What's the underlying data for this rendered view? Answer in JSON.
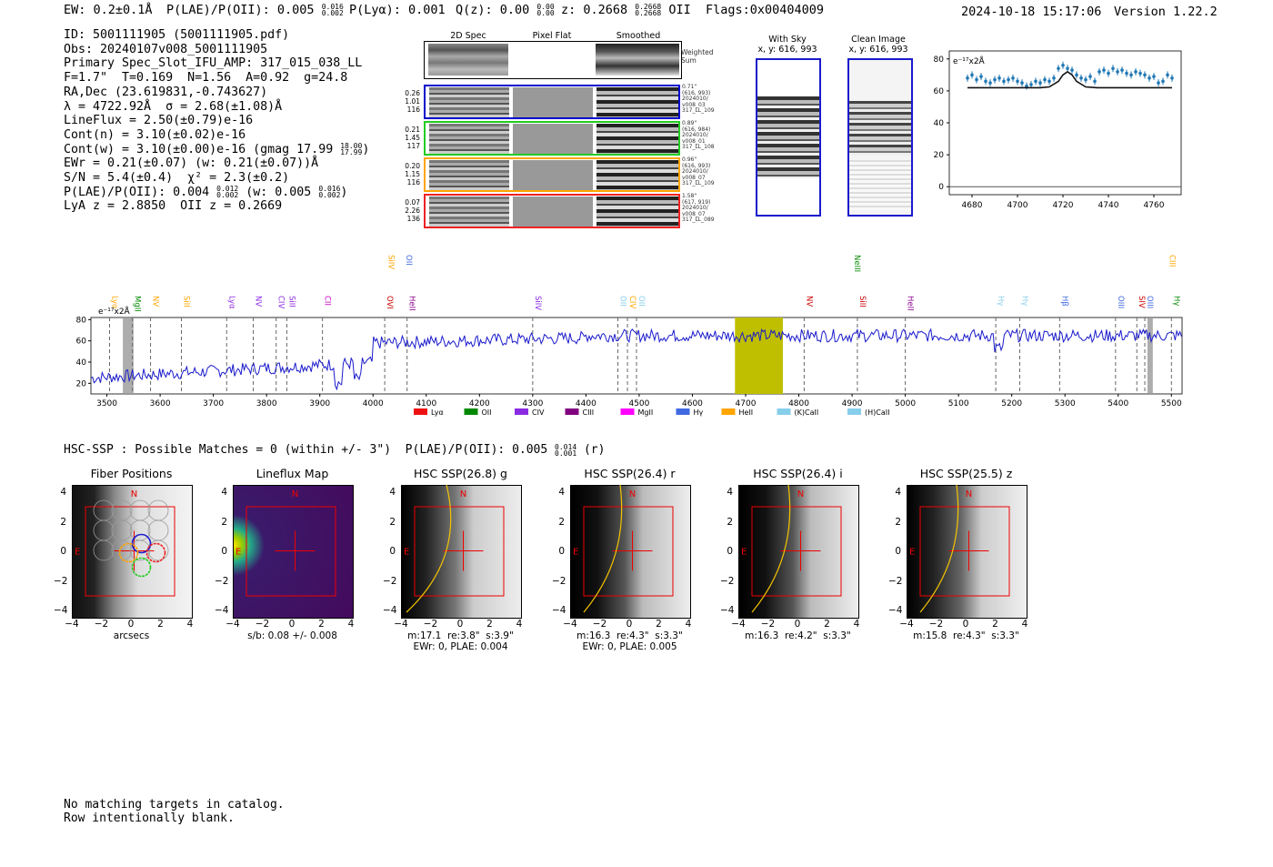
{
  "header": {
    "ew": "EW: 0.2±0.1Å",
    "plae": "P(LAE)/P(OII): 0.005",
    "plae_hi": "0.016",
    "plae_lo": "0.002",
    "plya": "P(Lyα): 0.001",
    "qz": "Q(z): 0.00",
    "qz_hi": "0.00",
    "qz_lo": "0.00",
    "z": "z: 0.2668",
    "z_hi": "0.2668",
    "z_lo": "0.2668",
    "z_line": "OII",
    "flags": "Flags:0x00404009",
    "timestamp": "2024-10-18 15:17:06",
    "version": "Version 1.22.2"
  },
  "info": {
    "id": "ID: 5001111905 (5001111905.pdf)",
    "obs": "Obs: 20240107v008_5001111905",
    "slot": "Primary Spec_Slot_IFU_AMP: 317_015_038_LL",
    "params": "F=1.7\"  T=0.169  N=1.56  A=0.92  g=24.8",
    "radec": "RA,Dec (23.619831,-0.743627)",
    "lambda": "λ = 4722.92Å  σ = 2.68(±1.08)Å",
    "lineflux": "LineFlux = 2.50(±0.79)e-16",
    "contn": "Cont(n) = 3.10(±0.02)e-16",
    "contw": "Cont(w) = 3.10(±0.00)e-16 (gmag 17.99",
    "contw_hi": "18.00",
    "contw_lo": "17.99",
    "contw_end": ")",
    "ewr": "EWr = 0.21(±0.07) (w: 0.21(±0.07))Å",
    "sn": "S/N = 5.4(±0.4)  χ² = 2.3(±0.2)",
    "plae2": "P(LAE)/P(OII): 0.004",
    "plae2_hi": "0.012",
    "plae2_lo": "0.002",
    "plae2_w": "(w: 0.005",
    "plae2_w_hi": "0.016",
    "plae2_w_lo": "0.002",
    "plae2_end": ")",
    "lya_z": "LyA z = 2.8850  OII z = 0.2669"
  },
  "cutouts2d": {
    "col_titles": [
      "2D Spec",
      "Pixel Flat",
      "Smoothed"
    ],
    "weighted_sum": "Weighted\nSum",
    "rows": [
      {
        "left": [
          "0.26",
          "1.01",
          "116"
        ],
        "right": [
          "0.71\"",
          "(616, 993)",
          "2024010/",
          "v008_03",
          "317_LL_109"
        ],
        "color": "#0000cc"
      },
      {
        "left": [
          "0.21",
          "1.45",
          "117"
        ],
        "right": [
          "0.89\"",
          "(616, 984)",
          "2024010/",
          "v008_01",
          "317_LL_108"
        ],
        "color": "#22cc22"
      },
      {
        "left": [
          "0.20",
          "1.15",
          "116"
        ],
        "right": [
          "0.96\"",
          "(616, 993)",
          "2024010/",
          "v008_07",
          "317_LL_109"
        ],
        "color": "#ffa500"
      },
      {
        "left": [
          "0.07",
          "2.26",
          "136"
        ],
        "right": [
          "1.58\"",
          "(617, 919)",
          "2024010/",
          "v008_07",
          "317_LL_089"
        ],
        "color": "#ee2222"
      }
    ]
  },
  "sky": {
    "with_sky_title": "With Sky",
    "with_sky_coords": "x, y: 616, 993",
    "clean_title": "Clean Image",
    "clean_coords": "x, y: 616, 993"
  },
  "zoom_chart": {
    "unit_label": "e⁻¹⁷x2Å",
    "xticks": [
      "4680",
      "4700",
      "4720",
      "4740",
      "4760"
    ],
    "yticks": [
      "0",
      "20",
      "40",
      "60",
      "80"
    ]
  },
  "full_spectrum": {
    "unit_label": "e⁻¹⁷x2Å",
    "xticks": [
      "3500",
      "3600",
      "3700",
      "3800",
      "3900",
      "4000",
      "4100",
      "4200",
      "4300",
      "4400",
      "4500",
      "4600",
      "4700",
      "4800",
      "4900",
      "5000",
      "5100",
      "5200",
      "5300",
      "5400",
      "5500"
    ],
    "yticks": [
      "20",
      "40",
      "60",
      "80"
    ],
    "line_labels": [
      {
        "t": "Lyα",
        "w": 3505,
        "c": "#ffa500",
        "row": 0
      },
      {
        "t": "MgII",
        "w": 3548,
        "c": "#008800",
        "row": 0
      },
      {
        "t": "NV",
        "w": 3582,
        "c": "#ffa500",
        "row": 0
      },
      {
        "t": "SiII",
        "w": 3640,
        "c": "#ffa500",
        "row": 0
      },
      {
        "t": "Lyα",
        "w": 3725,
        "c": "#8a2be2",
        "row": 0
      },
      {
        "t": "NV",
        "w": 3775,
        "c": "#8a2be2",
        "row": 0
      },
      {
        "t": "CIV",
        "w": 3818,
        "c": "#8a2be2",
        "row": 0
      },
      {
        "t": "SiII",
        "w": 3838,
        "c": "#8a2be2",
        "row": 0
      },
      {
        "t": "CII",
        "w": 3905,
        "c": "#cc00cc",
        "row": 0
      },
      {
        "t": "SiIV",
        "w": 4024,
        "c": "#ffa500",
        "row": -1
      },
      {
        "t": "OII",
        "w": 4058,
        "c": "#4169e1",
        "row": -1
      },
      {
        "t": "OVI",
        "w": 4022,
        "c": "#cc0000",
        "row": 0
      },
      {
        "t": "HeII",
        "w": 4064,
        "c": "#8b008b",
        "row": 0
      },
      {
        "t": "SiIV",
        "w": 4300,
        "c": "#8a2be2",
        "row": 0
      },
      {
        "t": "OII",
        "w": 4460,
        "c": "#87ceeb",
        "row": 0
      },
      {
        "t": "CIV",
        "w": 4478,
        "c": "#ffa500",
        "row": 0
      },
      {
        "t": "OII",
        "w": 4495,
        "c": "#87ceeb",
        "row": 0
      },
      {
        "t": "NV",
        "w": 4810,
        "c": "#cc0000",
        "row": 0
      },
      {
        "t": "NeIII",
        "w": 4900,
        "c": "#008800",
        "row": -1
      },
      {
        "t": "SiII",
        "w": 4910,
        "c": "#cc0000",
        "row": 0
      },
      {
        "t": "HeII",
        "w": 5000,
        "c": "#8b008b",
        "row": 0
      },
      {
        "t": "Hγ",
        "w": 5170,
        "c": "#87ceeb",
        "row": 0
      },
      {
        "t": "Hγ",
        "w": 5215,
        "c": "#87ceeb",
        "row": 0
      },
      {
        "t": "Hβ",
        "w": 5290,
        "c": "#4169e1",
        "row": 0
      },
      {
        "t": "OIII",
        "w": 5395,
        "c": "#4169e1",
        "row": 0
      },
      {
        "t": "SIV",
        "w": 5435,
        "c": "#cc0000",
        "row": 0
      },
      {
        "t": "OIII",
        "w": 5450,
        "c": "#4169e1",
        "row": 0
      },
      {
        "t": "CIII",
        "w": 5492,
        "c": "#ffa500",
        "row": -1
      },
      {
        "t": "Hγ",
        "w": 5500,
        "c": "#008800",
        "row": 0
      }
    ],
    "legend": [
      {
        "label": "Lyα",
        "color": "#ee1111"
      },
      {
        "label": "OII",
        "color": "#008800"
      },
      {
        "label": "CIV",
        "color": "#8a2be2"
      },
      {
        "label": "CIII",
        "color": "#800080"
      },
      {
        "label": "MgII",
        "color": "#ff00ff"
      },
      {
        "label": "Hγ",
        "color": "#4169e1"
      },
      {
        "label": "HeII",
        "color": "#ffa500"
      },
      {
        "label": "(K)CaII",
        "color": "#87ceeb"
      },
      {
        "label": "(H)CaII",
        "color": "#87ceeb"
      }
    ]
  },
  "hsc": {
    "title": "HSC-SSP : Possible Matches = 0 (within +/- 3\")  P(LAE)/P(OII): 0.005",
    "title_hi": "0.014",
    "title_lo": "0.001",
    "title_end": "(r)",
    "panels": [
      {
        "title": "Fiber Positions",
        "caption": [
          "arcsecs"
        ]
      },
      {
        "title": "Lineflux Map",
        "caption": [
          "s/b: 0.08 +/- 0.008"
        ]
      },
      {
        "title": "HSC SSP(26.8) g",
        "caption": [
          "m:17.1  re:3.8\"  s:3.9\"",
          "EWr: 0, PLAE: 0.004"
        ]
      },
      {
        "title": "HSC SSP(26.4) r",
        "caption": [
          "m:16.3  re:4.3\"  s:3.3\"",
          "EWr: 0, PLAE: 0.005"
        ]
      },
      {
        "title": "HSC SSP(26.4) i",
        "caption": [
          "m:16.3  re:4.2\"  s:3.3\""
        ]
      },
      {
        "title": "HSC SSP(25.5) z",
        "caption": [
          "m:15.8  re:4.3\"  s:3.3\""
        ]
      }
    ],
    "ticks": [
      "4",
      "2",
      "0",
      "−2",
      "−4"
    ],
    "xticks": [
      "−4",
      "−2",
      "0",
      "2",
      "4"
    ],
    "north": "N",
    "east": "E"
  },
  "footer": {
    "line1": "No matching targets in catalog.",
    "line2": "Row intentionally blank."
  },
  "chart_data": [
    {
      "type": "scatter",
      "title": "",
      "xlabel": "",
      "ylabel": "e⁻¹⁷x2Å",
      "xlim": [
        4670,
        4772
      ],
      "ylim": [
        -5,
        85
      ],
      "series": [
        {
          "name": "data",
          "x": [
            4678,
            4680,
            4682,
            4684,
            4686,
            4688,
            4690,
            4692,
            4694,
            4696,
            4698,
            4700,
            4702,
            4704,
            4706,
            4708,
            4710,
            4712,
            4714,
            4716,
            4718,
            4720,
            4722,
            4724,
            4726,
            4728,
            4730,
            4732,
            4734,
            4736,
            4738,
            4740,
            4742,
            4744,
            4746,
            4748,
            4750,
            4752,
            4754,
            4756,
            4758,
            4760,
            4762,
            4764,
            4766,
            4768
          ],
          "y": [
            68,
            70,
            67,
            69,
            66,
            65,
            67,
            68,
            66,
            67,
            68,
            66,
            65,
            63,
            64,
            66,
            65,
            67,
            66,
            68,
            74,
            76,
            74,
            73,
            70,
            68,
            67,
            69,
            66,
            72,
            73,
            71,
            74,
            72,
            73,
            71,
            70,
            72,
            71,
            70,
            68,
            69,
            65,
            66,
            70,
            68
          ]
        },
        {
          "name": "fit",
          "x": [
            4678,
            4710,
            4714,
            4718,
            4720,
            4722,
            4724,
            4726,
            4730,
            4735,
            4768
          ],
          "y": [
            62,
            62,
            62.5,
            66,
            70,
            72,
            70,
            66,
            62.5,
            62,
            62
          ]
        }
      ]
    },
    {
      "type": "line",
      "title": "",
      "xlabel": "",
      "ylabel": "e⁻¹⁷x2Å",
      "xlim": [
        3470,
        5520
      ],
      "ylim": [
        10,
        82
      ],
      "categories": [],
      "shaded_regions": [
        [
          3530,
          3550
        ],
        [
          4680,
          4770
        ],
        [
          5455,
          5465
        ]
      ]
    }
  ]
}
